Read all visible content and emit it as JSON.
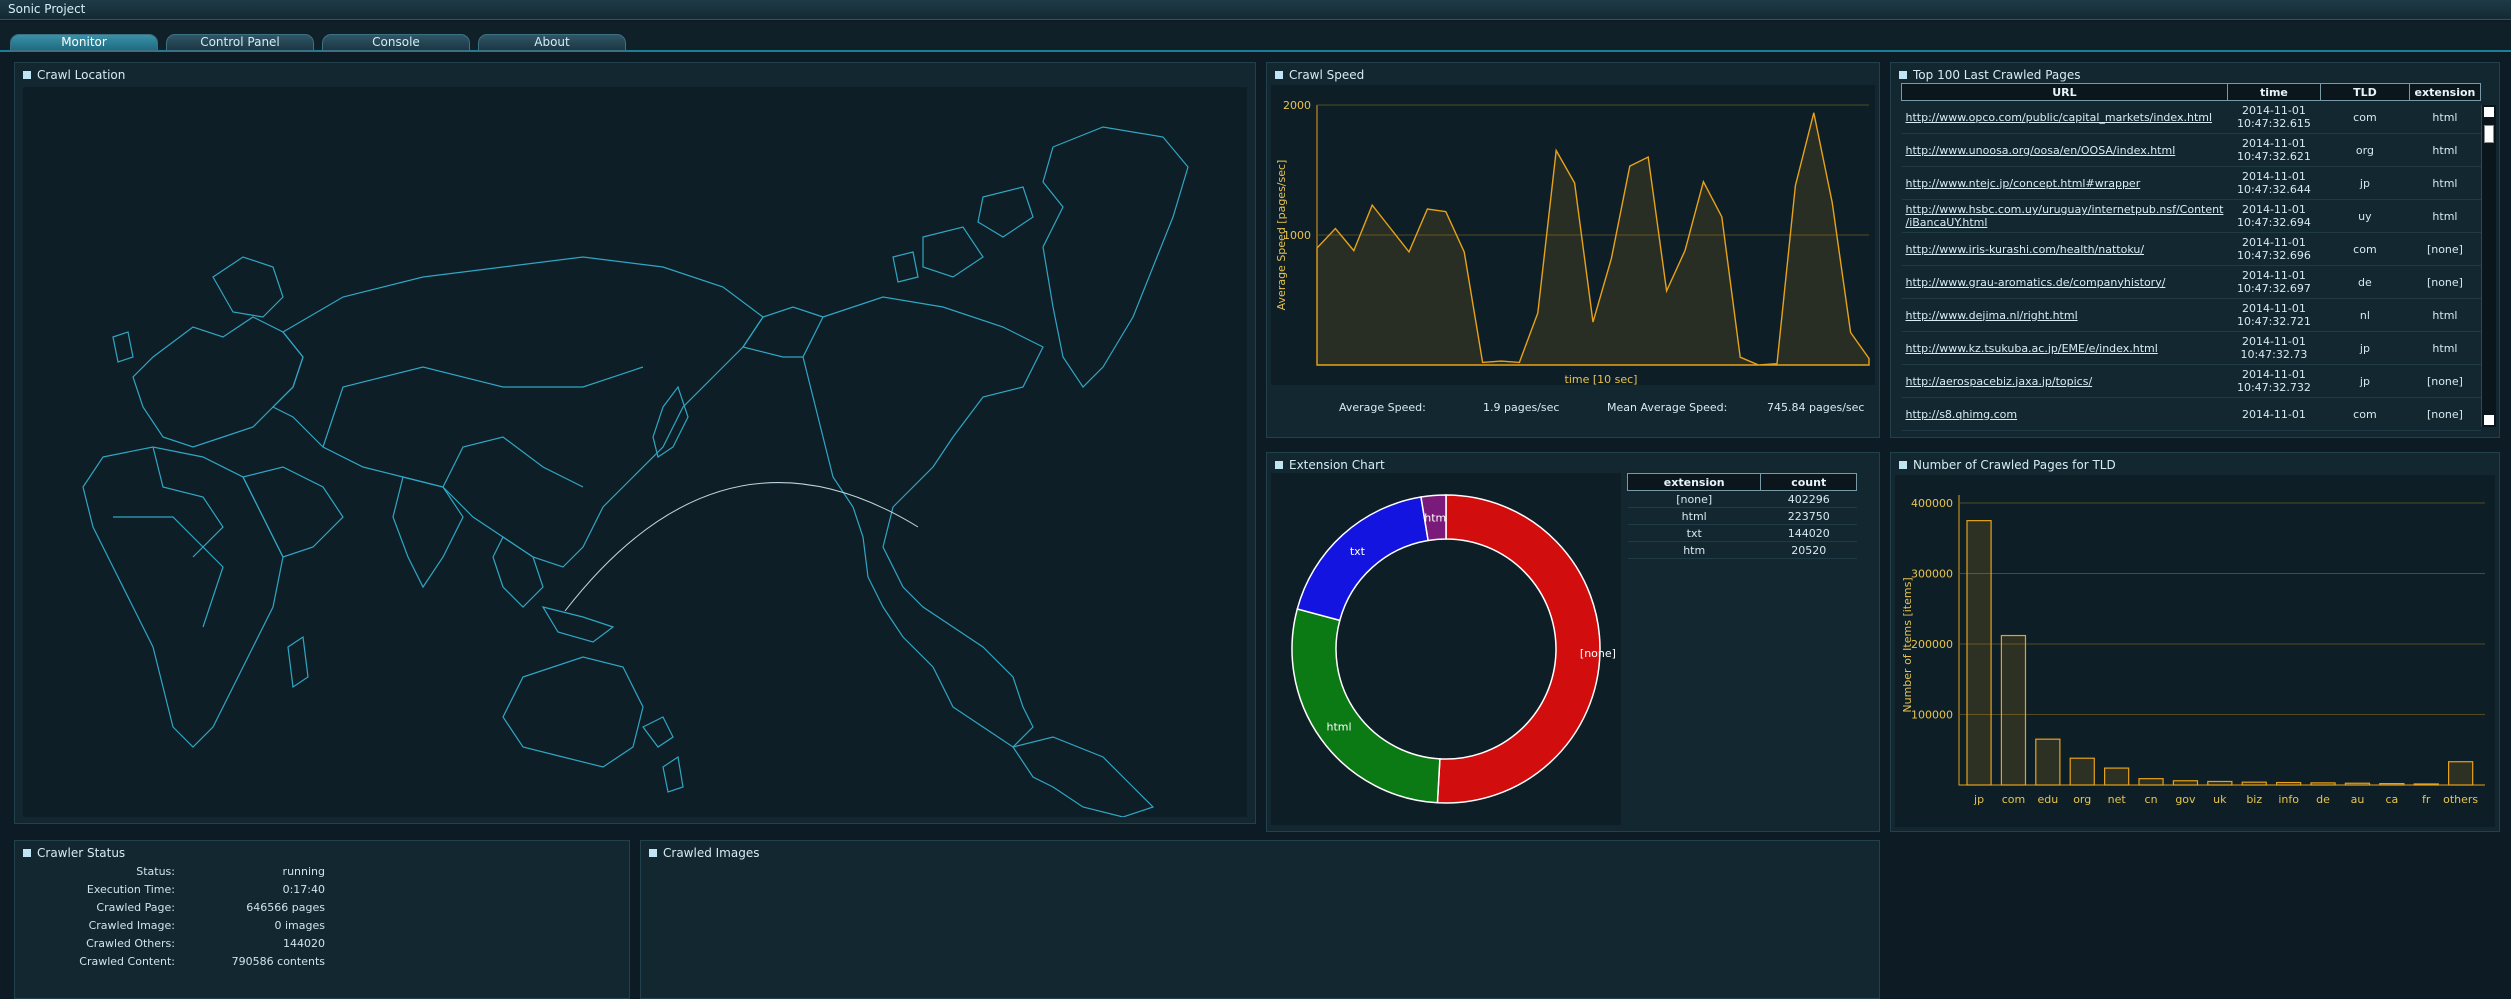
{
  "app": {
    "title": "Sonic Project"
  },
  "tabs": [
    "Monitor",
    "Control Panel",
    "Console",
    "About"
  ],
  "panels": {
    "crawl_location": "Crawl Location",
    "crawl_speed": "Crawl Speed",
    "top100": "Top 100 Last Crawled Pages",
    "extension_chart": "Extension Chart",
    "tld_chart": "Number of Crawled Pages for TLD",
    "crawler_status": "Crawler Status",
    "crawled_images": "Crawled Images"
  },
  "speed": {
    "avg_label": "Average Speed:",
    "avg_value": "1.9 pages/sec",
    "mean_label": "Mean Average Speed:",
    "mean_value": "745.84 pages/sec"
  },
  "top_pages": {
    "headers": [
      "URL",
      "time",
      "TLD",
      "extension"
    ],
    "rows": [
      {
        "url": "http://www.opco.com/public/capital_markets/index.html",
        "date": "2014-11-01",
        "time": "10:47:32.615",
        "tld": "com",
        "ext": "html"
      },
      {
        "url": "http://www.unoosa.org/oosa/en/OOSA/index.html",
        "date": "2014-11-01",
        "time": "10:47:32.621",
        "tld": "org",
        "ext": "html"
      },
      {
        "url": "http://www.ntejc.jp/concept.html#wrapper",
        "date": "2014-11-01",
        "time": "10:47:32.644",
        "tld": "jp",
        "ext": "html"
      },
      {
        "url": "http://www.hsbc.com.uy/uruguay/internetpub.nsf/Content/iBancaUY.html",
        "url2": "/iBancaUY.html",
        "url1": "http://www.hsbc.com.uy/uruguay/internetpub.nsf/Content",
        "date": "2014-11-01",
        "time": "10:47:32.694",
        "tld": "uy",
        "ext": "html"
      },
      {
        "url": "http://www.iris-kurashi.com/health/nattoku/",
        "date": "2014-11-01",
        "time": "10:47:32.696",
        "tld": "com",
        "ext": "[none]"
      },
      {
        "url": "http://www.grau-aromatics.de/companyhistory/",
        "date": "2014-11-01",
        "time": "10:47:32.697",
        "tld": "de",
        "ext": "[none]"
      },
      {
        "url": "http://www.dejima.nl/right.html",
        "date": "2014-11-01",
        "time": "10:47:32.721",
        "tld": "nl",
        "ext": "html"
      },
      {
        "url": "http://www.kz.tsukuba.ac.jp/EME/e/index.html",
        "date": "2014-11-01",
        "time": "10:47:32.73",
        "tld": "jp",
        "ext": "html"
      },
      {
        "url": "http://aerospacebiz.jaxa.jp/topics/",
        "date": "2014-11-01",
        "time": "10:47:32.732",
        "tld": "jp",
        "ext": "[none]"
      },
      {
        "url": "http://s8.qhimg.com",
        "date": "2014-11-01",
        "time": "",
        "tld": "com",
        "ext": "[none]"
      }
    ]
  },
  "extension_table": {
    "headers": [
      "extension",
      "count"
    ],
    "rows": [
      [
        "[none]",
        "402296"
      ],
      [
        "html",
        "223750"
      ],
      [
        "txt",
        "144020"
      ],
      [
        "htm",
        "20520"
      ]
    ]
  },
  "crawler_status": [
    {
      "label": "Status:",
      "value": "running"
    },
    {
      "label": "Execution Time:",
      "value": "0:17:40"
    },
    {
      "label": "Crawled Page:",
      "value": "646566 pages"
    },
    {
      "label": "Crawled Image:",
      "value": "0 images"
    },
    {
      "label": "Crawled Others:",
      "value": "144020"
    },
    {
      "label": "Crawled Content:",
      "value": "790586 contents"
    }
  ],
  "colors": {
    "accent": "#e7a21a",
    "none": "#d10d0d",
    "html": "#0c7a14",
    "txt": "#1414e0",
    "htm": "#7a1a7a",
    "map_line": "#2fa6c4"
  },
  "chart_data": [
    {
      "type": "area",
      "xlabel": "time [10 sec]",
      "ylabel": "Average Speed [pages/sec]",
      "yticks": [
        "1000",
        "2000"
      ],
      "ylim": [
        0,
        2000
      ],
      "values": [
        900,
        1050,
        880,
        1230,
        1050,
        870,
        1200,
        1180,
        870,
        20,
        30,
        20,
        400,
        1650,
        1400,
        330,
        820,
        1530,
        1600,
        570,
        880,
        1410,
        1140,
        60,
        0,
        10,
        1380,
        1940,
        1250,
        250,
        50
      ]
    },
    {
      "type": "pie",
      "categories": [
        "[none]",
        "html",
        "txt",
        "htm"
      ],
      "values": [
        402296,
        223750,
        144020,
        20520
      ]
    },
    {
      "type": "bar",
      "ylabel": "Number of Items [items]",
      "yticks": [
        "100000",
        "200000",
        "300000",
        "400000"
      ],
      "ylim": [
        0,
        400000
      ],
      "categories": [
        "jp",
        "com",
        "edu",
        "org",
        "net",
        "cn",
        "gov",
        "uk",
        "biz",
        "info",
        "de",
        "au",
        "ca",
        "fr",
        "others"
      ],
      "values": [
        375000,
        212000,
        65000,
        38000,
        24000,
        9000,
        6000,
        5000,
        4000,
        3500,
        3000,
        2500,
        2000,
        1500,
        33000
      ]
    }
  ]
}
